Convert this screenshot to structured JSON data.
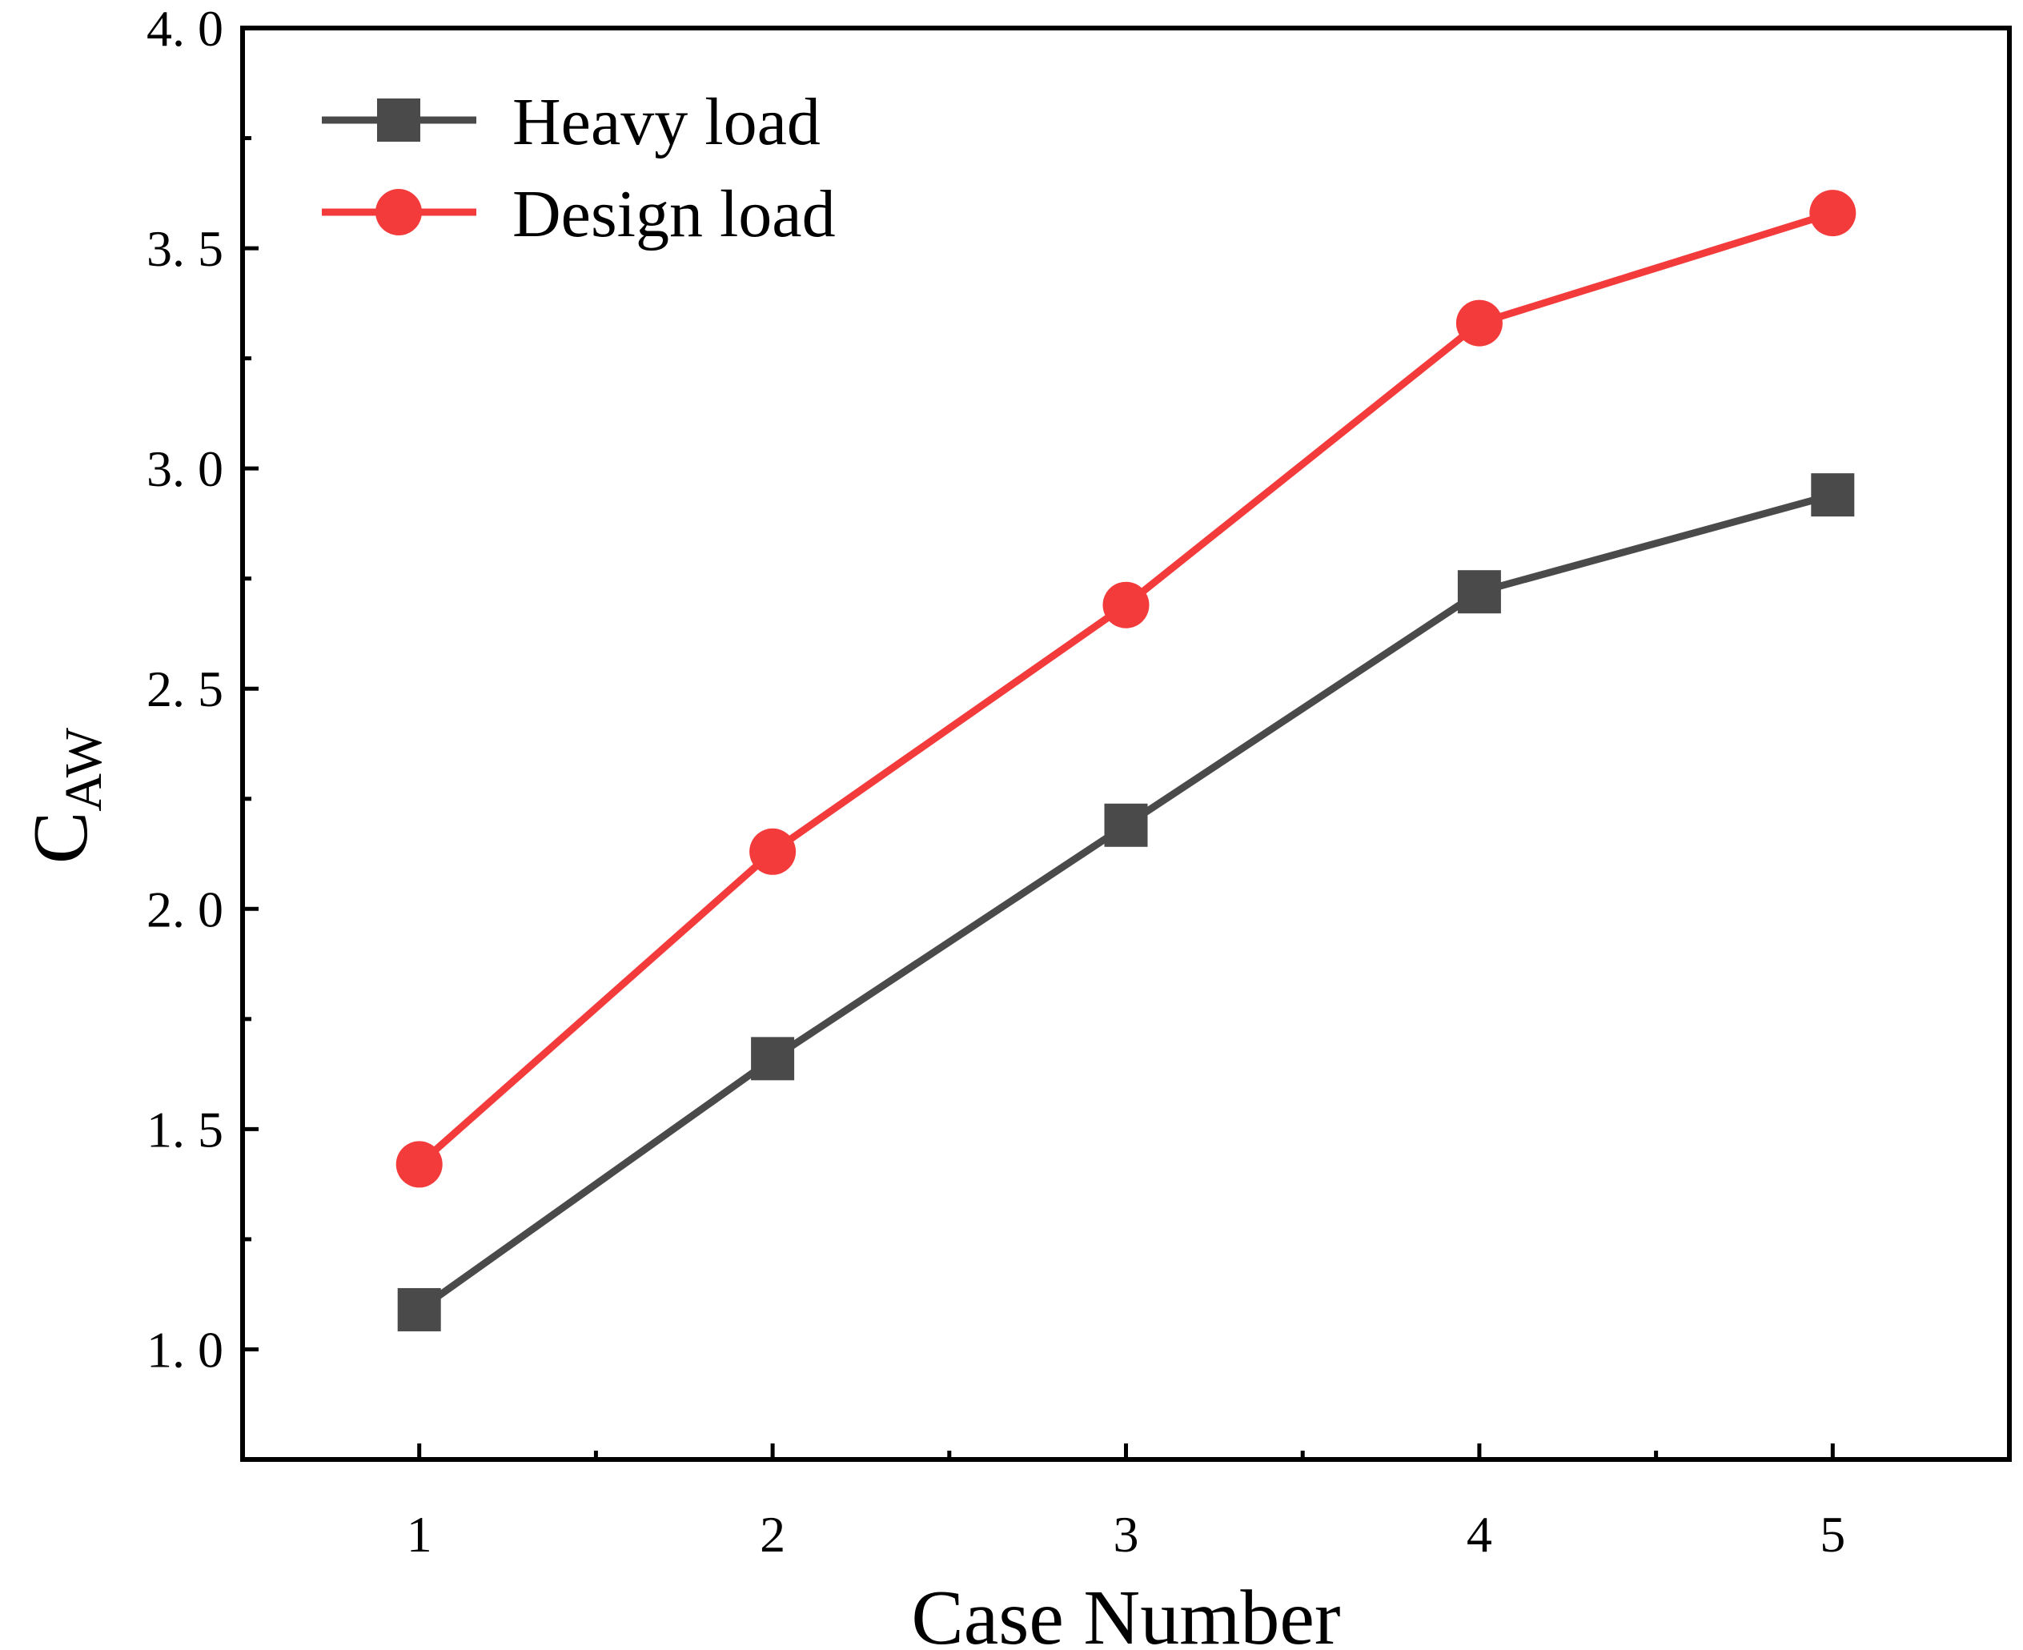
{
  "chart_data": {
    "type": "line",
    "title": "",
    "xlabel": "Case Number",
    "ylabel": {
      "main": "C",
      "subscript": "AW"
    },
    "xlim": [
      0.5,
      5.5
    ],
    "ylim": [
      0.75,
      4.0
    ],
    "x_ticks": [
      1,
      2,
      3,
      4,
      5
    ],
    "x_tick_labels": [
      "1",
      "2",
      "3",
      "4",
      "5"
    ],
    "y_ticks": [
      1.0,
      1.5,
      2.0,
      2.5,
      3.0,
      3.5,
      4.0
    ],
    "y_tick_labels": [
      "1. 0",
      "1. 5",
      "2. 0",
      "2. 5",
      "3. 0",
      "3. 5",
      "4. 0"
    ],
    "grid": false,
    "legend_position": "top-left",
    "series": [
      {
        "name": "Heavy load",
        "marker": "square",
        "color": "#4a4a4a",
        "x": [
          1,
          2,
          3,
          4,
          5
        ],
        "values": [
          1.09,
          1.66,
          2.19,
          2.72,
          2.94
        ]
      },
      {
        "name": "Design load",
        "marker": "circle",
        "color": "#f43b3b",
        "x": [
          1,
          2,
          3,
          4,
          5
        ],
        "values": [
          1.42,
          2.13,
          2.69,
          3.33,
          3.58
        ]
      }
    ]
  }
}
